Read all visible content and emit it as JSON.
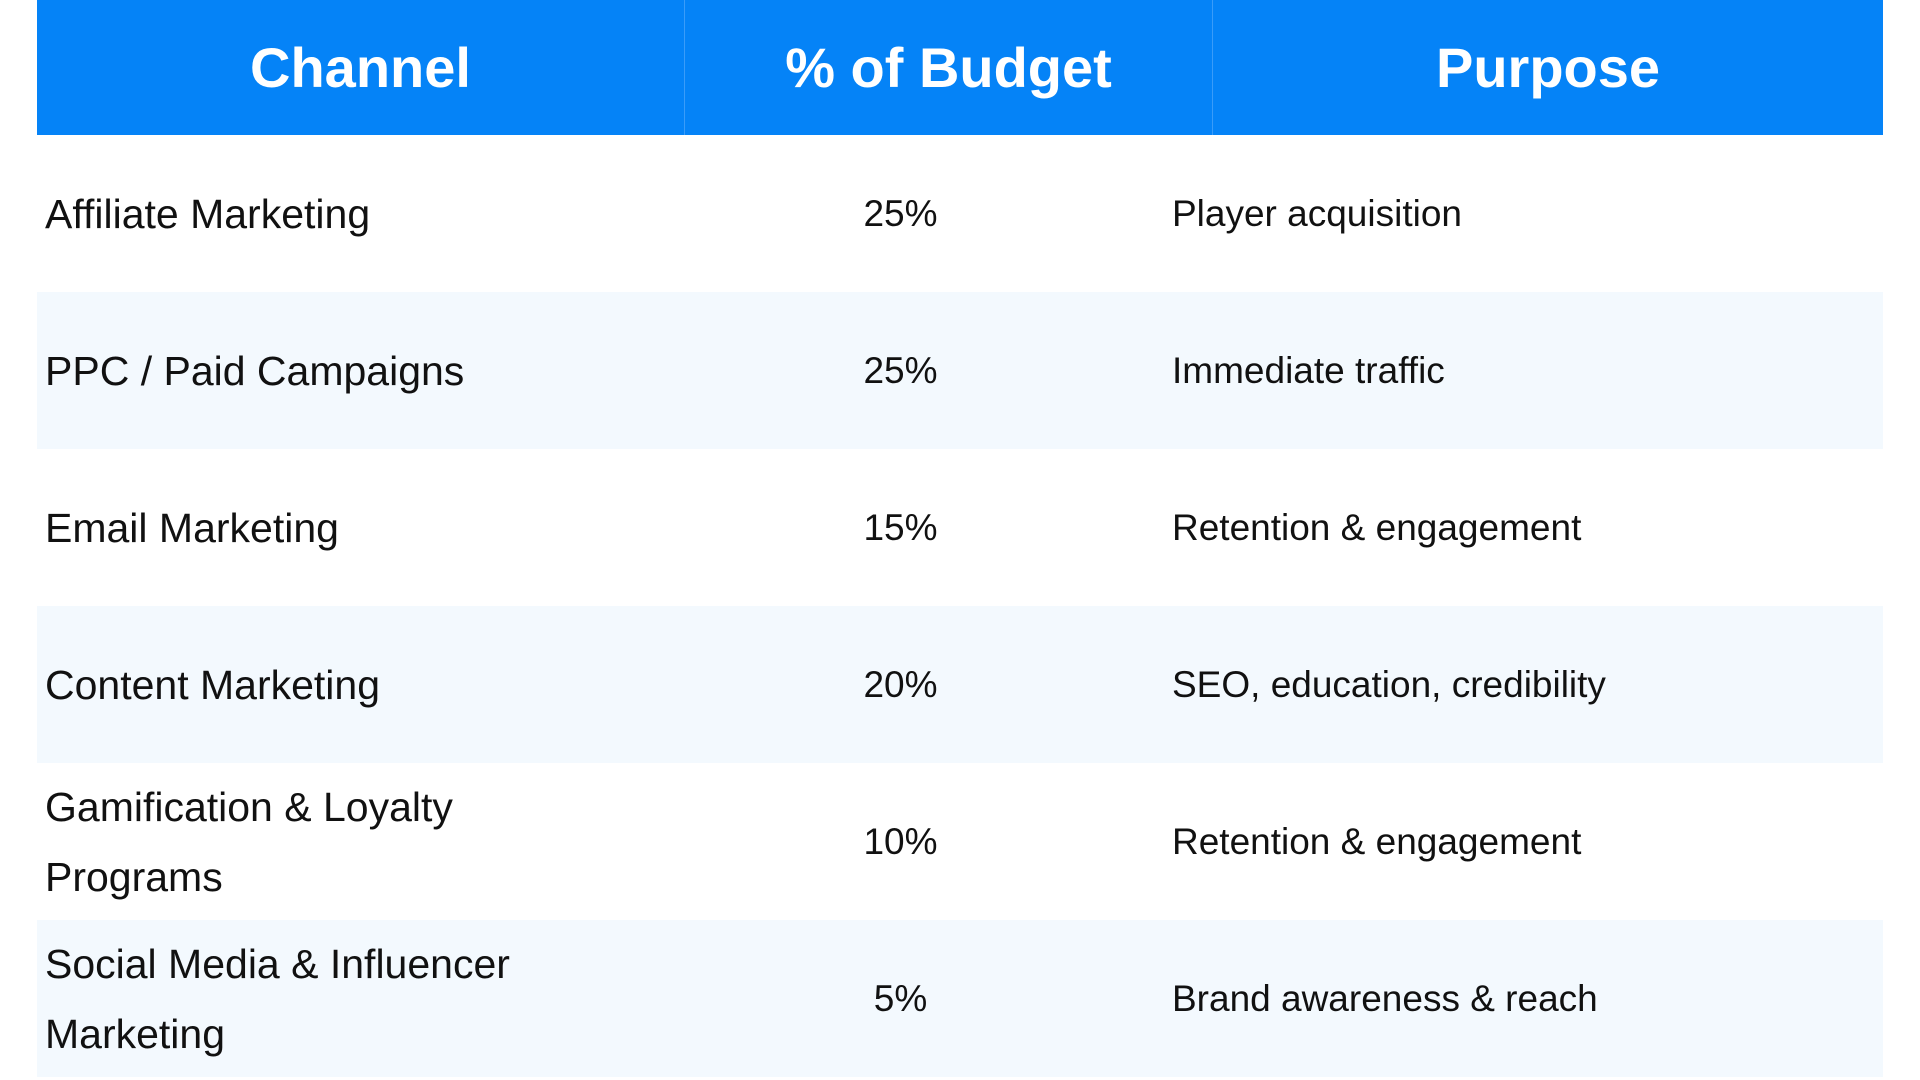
{
  "colors": {
    "header_bg": "#0583f7",
    "alt_row_bg": "#f3f9fe",
    "header_text": "#ffffff"
  },
  "table": {
    "headers": [
      "Channel",
      "% of Budget",
      "Purpose"
    ],
    "rows": [
      {
        "channel": "Affiliate Marketing",
        "budget": "25%",
        "purpose": "Player acquisition"
      },
      {
        "channel": "PPC / Paid Campaigns",
        "budget": "25%",
        "purpose": "Immediate traffic"
      },
      {
        "channel": "Email Marketing",
        "budget": "15%",
        "purpose": "Retention & engagement"
      },
      {
        "channel": "Content Marketing",
        "budget": "20%",
        "purpose": "SEO, education, credibility"
      },
      {
        "channel": "Gamification & Loyalty Programs",
        "budget": "10%",
        "purpose": "Retention & engagement"
      },
      {
        "channel": "Social Media & Influencer Marketing",
        "budget": "5%",
        "purpose": "Brand awareness & reach"
      }
    ]
  }
}
